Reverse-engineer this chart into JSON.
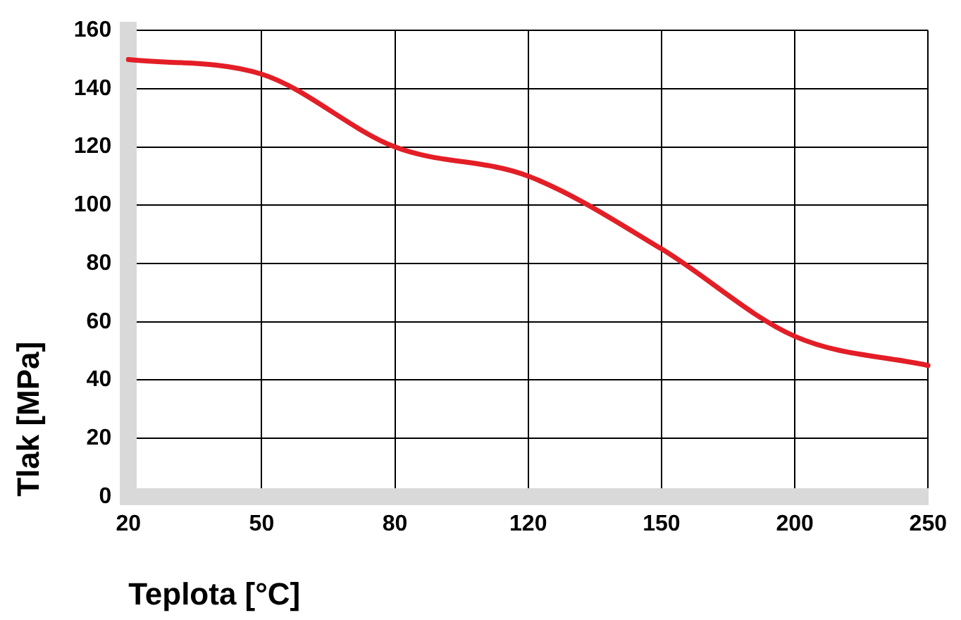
{
  "chart_data": {
    "type": "line",
    "xlabel": "Teplota [°C]",
    "ylabel": "Tlak [MPa]",
    "categories": [
      "20",
      "50",
      "80",
      "120",
      "150",
      "200",
      "250"
    ],
    "series": [
      {
        "color": "#e31e26",
        "values": [
          150,
          145,
          120,
          110,
          85,
          55,
          45
        ]
      }
    ],
    "ylim": [
      0,
      160
    ],
    "yticks": [
      0,
      20,
      40,
      60,
      80,
      100,
      120,
      140,
      160
    ],
    "grid": true,
    "legend": false,
    "marker": "none",
    "line_style": "solid"
  }
}
